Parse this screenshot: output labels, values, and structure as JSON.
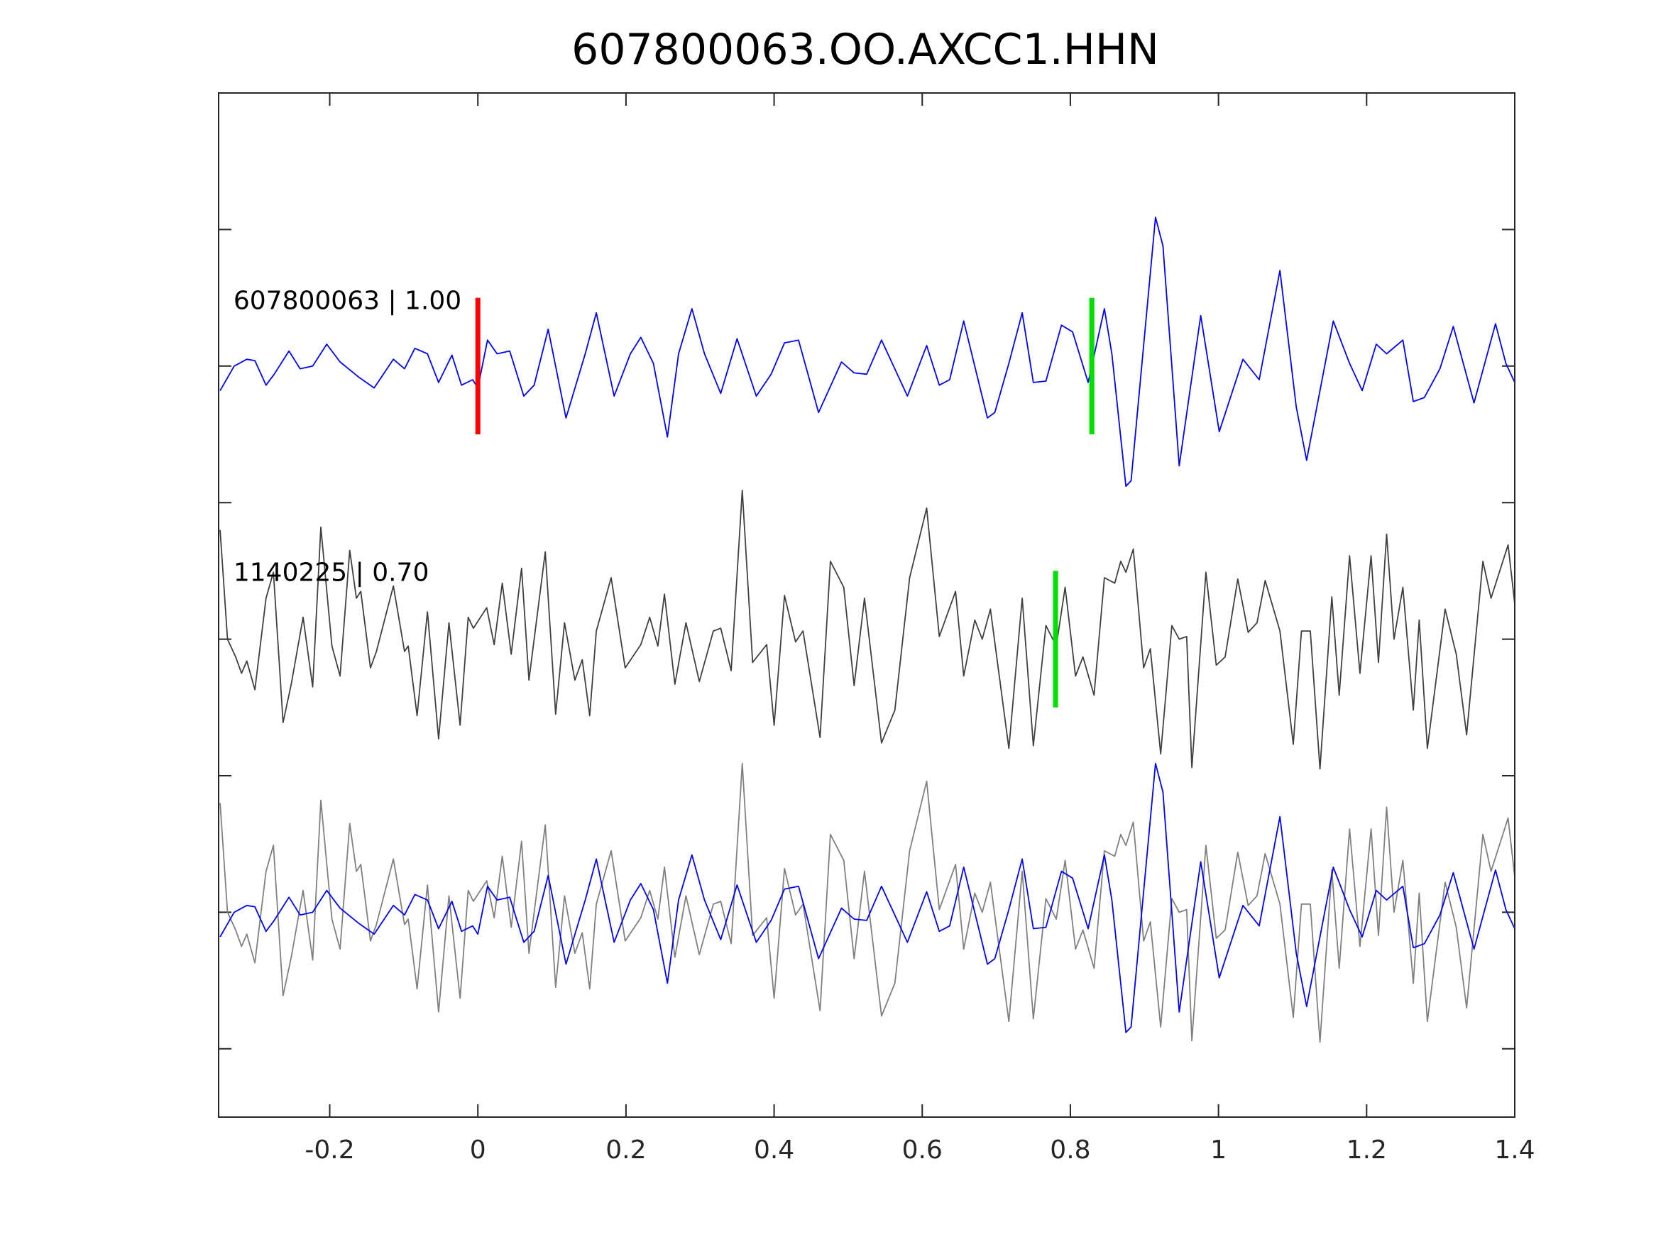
{
  "chart_data": {
    "type": "line",
    "title": "607800063.OO.AXCC1.HHN",
    "xlabel": "",
    "ylabel": "",
    "xlim": [
      -0.35,
      1.4
    ],
    "ylim": [
      0.5,
      8
    ],
    "xticks": [
      -0.2,
      0,
      0.2,
      0.4,
      0.6,
      0.8,
      1,
      1.2,
      1.4
    ],
    "xtick_labels": [
      "-0.2",
      "0",
      "0.2",
      "0.4",
      "0.6",
      "0.8",
      "1",
      "1.2",
      "1.4"
    ],
    "yticks": [
      1,
      2,
      3,
      4,
      5,
      6,
      7
    ],
    "grid": false,
    "colors": {
      "template": "#0000ff",
      "detection": "#404040",
      "overlay_detection": "#808080",
      "p_pick": "#ff0000",
      "s_pick": "#00dd00",
      "axes": "#262626"
    },
    "trace_labels": [
      {
        "text": "607800063 | 1.00",
        "t": -0.33,
        "y": 6.48
      },
      {
        "text": "1140225 | 0.70",
        "t": -0.33,
        "y": 4.49
      }
    ],
    "picks": [
      {
        "name": "p-pick-template",
        "t": 0.0,
        "center": 6,
        "color": "#ff0000"
      },
      {
        "name": "s-pick-template",
        "t": 0.829,
        "center": 6,
        "color": "#00dd00"
      },
      {
        "name": "s-pick-detection",
        "t": 0.78,
        "center": 4,
        "color": "#00dd00"
      }
    ],
    "series": [
      {
        "name": "template-trace",
        "center": 6,
        "color": "#0000ff",
        "source": "template"
      },
      {
        "name": "detection-trace",
        "center": 4,
        "color": "#404040",
        "source": "detection"
      },
      {
        "name": "overlay-detection-trace",
        "center": 2,
        "color": "#808080",
        "source": "detection"
      },
      {
        "name": "overlay-template-trace",
        "center": 2,
        "color": "#0000ff",
        "source": "template"
      }
    ],
    "waveforms": {
      "template": [
        [
          -0.348,
          -0.18
        ],
        [
          -0.329,
          0.0
        ],
        [
          -0.312,
          0.05
        ],
        [
          -0.301,
          0.04
        ],
        [
          -0.286,
          -0.14
        ],
        [
          -0.275,
          -0.06
        ],
        [
          -0.255,
          0.11
        ],
        [
          -0.24,
          -0.02
        ],
        [
          -0.223,
          0.0
        ],
        [
          -0.204,
          0.16
        ],
        [
          -0.186,
          0.03
        ],
        [
          -0.161,
          -0.08
        ],
        [
          -0.14,
          -0.16
        ],
        [
          -0.114,
          0.05
        ],
        [
          -0.099,
          -0.02
        ],
        [
          -0.085,
          0.13
        ],
        [
          -0.068,
          0.09
        ],
        [
          -0.053,
          -0.12
        ],
        [
          -0.035,
          0.08
        ],
        [
          -0.022,
          -0.14
        ],
        [
          -0.007,
          -0.1
        ],
        [
          0.0,
          -0.16
        ],
        [
          0.013,
          0.19
        ],
        [
          0.026,
          0.09
        ],
        [
          0.043,
          0.11
        ],
        [
          0.062,
          -0.22
        ],
        [
          0.076,
          -0.14
        ],
        [
          0.095,
          0.27
        ],
        [
          0.119,
          -0.38
        ],
        [
          0.145,
          0.09
        ],
        [
          0.16,
          0.39
        ],
        [
          0.184,
          -0.22
        ],
        [
          0.206,
          0.09
        ],
        [
          0.22,
          0.21
        ],
        [
          0.237,
          0.02
        ],
        [
          0.256,
          -0.52
        ],
        [
          0.271,
          0.09
        ],
        [
          0.289,
          0.42
        ],
        [
          0.306,
          0.09
        ],
        [
          0.328,
          -0.2
        ],
        [
          0.35,
          0.2
        ],
        [
          0.376,
          -0.22
        ],
        [
          0.396,
          -0.06
        ],
        [
          0.414,
          0.17
        ],
        [
          0.433,
          0.19
        ],
        [
          0.46,
          -0.34
        ],
        [
          0.491,
          0.03
        ],
        [
          0.508,
          -0.05
        ],
        [
          0.525,
          -0.06
        ],
        [
          0.545,
          0.19
        ],
        [
          0.58,
          -0.22
        ],
        [
          0.606,
          0.15
        ],
        [
          0.623,
          -0.14
        ],
        [
          0.637,
          -0.1
        ],
        [
          0.656,
          0.33
        ],
        [
          0.688,
          -0.38
        ],
        [
          0.698,
          -0.34
        ],
        [
          0.717,
          0.02
        ],
        [
          0.735,
          0.39
        ],
        [
          0.75,
          -0.12
        ],
        [
          0.767,
          -0.11
        ],
        [
          0.788,
          0.3
        ],
        [
          0.803,
          0.25
        ],
        [
          0.824,
          -0.12
        ],
        [
          0.846,
          0.42
        ],
        [
          0.856,
          0.09
        ],
        [
          0.875,
          -0.88
        ],
        [
          0.882,
          -0.84
        ],
        [
          0.915,
          1.09
        ],
        [
          0.925,
          0.88
        ],
        [
          0.947,
          -0.73
        ],
        [
          0.976,
          0.37
        ],
        [
          1.001,
          -0.48
        ],
        [
          1.033,
          0.05
        ],
        [
          1.055,
          -0.1
        ],
        [
          1.083,
          0.7
        ],
        [
          1.105,
          -0.3
        ],
        [
          1.119,
          -0.69
        ],
        [
          1.155,
          0.33
        ],
        [
          1.177,
          0.02
        ],
        [
          1.194,
          -0.18
        ],
        [
          1.213,
          0.16
        ],
        [
          1.227,
          0.09
        ],
        [
          1.249,
          0.19
        ],
        [
          1.263,
          -0.26
        ],
        [
          1.278,
          -0.23
        ],
        [
          1.299,
          -0.02
        ],
        [
          1.317,
          0.29
        ],
        [
          1.345,
          -0.27
        ],
        [
          1.374,
          0.31
        ],
        [
          1.388,
          0.02
        ],
        [
          1.4,
          -0.12
        ]
      ],
      "detection": [
        [
          -0.348,
          0.8
        ],
        [
          -0.338,
          0.0
        ],
        [
          -0.327,
          -0.13
        ],
        [
          -0.319,
          -0.25
        ],
        [
          -0.312,
          -0.16
        ],
        [
          -0.301,
          -0.37
        ],
        [
          -0.286,
          0.3
        ],
        [
          -0.276,
          0.49
        ],
        [
          -0.263,
          -0.61
        ],
        [
          -0.252,
          -0.33
        ],
        [
          -0.236,
          0.16
        ],
        [
          -0.223,
          -0.35
        ],
        [
          -0.212,
          0.82
        ],
        [
          -0.197,
          -0.05
        ],
        [
          -0.186,
          -0.27
        ],
        [
          -0.173,
          0.65
        ],
        [
          -0.164,
          0.3
        ],
        [
          -0.158,
          0.35
        ],
        [
          -0.145,
          -0.21
        ],
        [
          -0.137,
          -0.09
        ],
        [
          -0.114,
          0.39
        ],
        [
          -0.099,
          -0.09
        ],
        [
          -0.094,
          -0.05
        ],
        [
          -0.082,
          -0.56
        ],
        [
          -0.068,
          0.2
        ],
        [
          -0.053,
          -0.73
        ],
        [
          -0.039,
          0.12
        ],
        [
          -0.024,
          -0.63
        ],
        [
          -0.013,
          0.16
        ],
        [
          -0.006,
          0.08
        ],
        [
          0.012,
          0.23
        ],
        [
          0.022,
          -0.04
        ],
        [
          0.033,
          0.41
        ],
        [
          0.045,
          -0.11
        ],
        [
          0.059,
          0.52
        ],
        [
          0.069,
          -0.3
        ],
        [
          0.091,
          0.64
        ],
        [
          0.105,
          -0.55
        ],
        [
          0.117,
          0.12
        ],
        [
          0.131,
          -0.3
        ],
        [
          0.141,
          -0.15
        ],
        [
          0.151,
          -0.56
        ],
        [
          0.16,
          0.06
        ],
        [
          0.18,
          0.45
        ],
        [
          0.199,
          -0.21
        ],
        [
          0.22,
          -0.04
        ],
        [
          0.232,
          0.16
        ],
        [
          0.243,
          -0.05
        ],
        [
          0.252,
          0.33
        ],
        [
          0.266,
          -0.33
        ],
        [
          0.281,
          0.12
        ],
        [
          0.299,
          -0.31
        ],
        [
          0.318,
          0.06
        ],
        [
          0.328,
          0.08
        ],
        [
          0.342,
          -0.23
        ],
        [
          0.357,
          1.09
        ],
        [
          0.371,
          -0.17
        ],
        [
          0.39,
          -0.04
        ],
        [
          0.4,
          -0.63
        ],
        [
          0.414,
          0.32
        ],
        [
          0.429,
          -0.02
        ],
        [
          0.439,
          0.06
        ],
        [
          0.462,
          -0.72
        ],
        [
          0.476,
          0.57
        ],
        [
          0.494,
          0.38
        ],
        [
          0.508,
          -0.34
        ],
        [
          0.522,
          0.3
        ],
        [
          0.545,
          -0.76
        ],
        [
          0.563,
          -0.52
        ],
        [
          0.583,
          0.45
        ],
        [
          0.606,
          0.96
        ],
        [
          0.623,
          0.02
        ],
        [
          0.645,
          0.35
        ],
        [
          0.656,
          -0.27
        ],
        [
          0.671,
          0.14
        ],
        [
          0.681,
          0.0
        ],
        [
          0.692,
          0.22
        ],
        [
          0.717,
          -0.8
        ],
        [
          0.735,
          0.3
        ],
        [
          0.75,
          -0.78
        ],
        [
          0.767,
          0.1
        ],
        [
          0.781,
          -0.05
        ],
        [
          0.793,
          0.38
        ],
        [
          0.807,
          -0.27
        ],
        [
          0.817,
          -0.13
        ],
        [
          0.832,
          -0.41
        ],
        [
          0.846,
          0.45
        ],
        [
          0.86,
          0.41
        ],
        [
          0.868,
          0.57
        ],
        [
          0.875,
          0.49
        ],
        [
          0.885,
          0.66
        ],
        [
          0.899,
          -0.21
        ],
        [
          0.908,
          -0.07
        ],
        [
          0.922,
          -0.84
        ],
        [
          0.937,
          0.1
        ],
        [
          0.947,
          0.0
        ],
        [
          0.957,
          0.02
        ],
        [
          0.964,
          -0.94
        ],
        [
          0.983,
          0.49
        ],
        [
          0.997,
          -0.19
        ],
        [
          1.009,
          -0.13
        ],
        [
          1.026,
          0.44
        ],
        [
          1.04,
          0.05
        ],
        [
          1.052,
          0.12
        ],
        [
          1.063,
          0.43
        ],
        [
          1.083,
          0.06
        ],
        [
          1.101,
          -0.77
        ],
        [
          1.112,
          0.06
        ],
        [
          1.124,
          0.06
        ],
        [
          1.137,
          -0.95
        ],
        [
          1.153,
          0.31
        ],
        [
          1.163,
          -0.41
        ],
        [
          1.177,
          0.61
        ],
        [
          1.191,
          -0.25
        ],
        [
          1.206,
          0.61
        ],
        [
          1.216,
          -0.17
        ],
        [
          1.227,
          0.77
        ],
        [
          1.237,
          0.0
        ],
        [
          1.249,
          0.38
        ],
        [
          1.263,
          -0.52
        ],
        [
          1.271,
          0.14
        ],
        [
          1.282,
          -0.8
        ],
        [
          1.306,
          0.22
        ],
        [
          1.321,
          -0.11
        ],
        [
          1.335,
          -0.7
        ],
        [
          1.357,
          0.57
        ],
        [
          1.368,
          0.3
        ],
        [
          1.391,
          0.69
        ],
        [
          1.4,
          0.26
        ]
      ]
    }
  }
}
